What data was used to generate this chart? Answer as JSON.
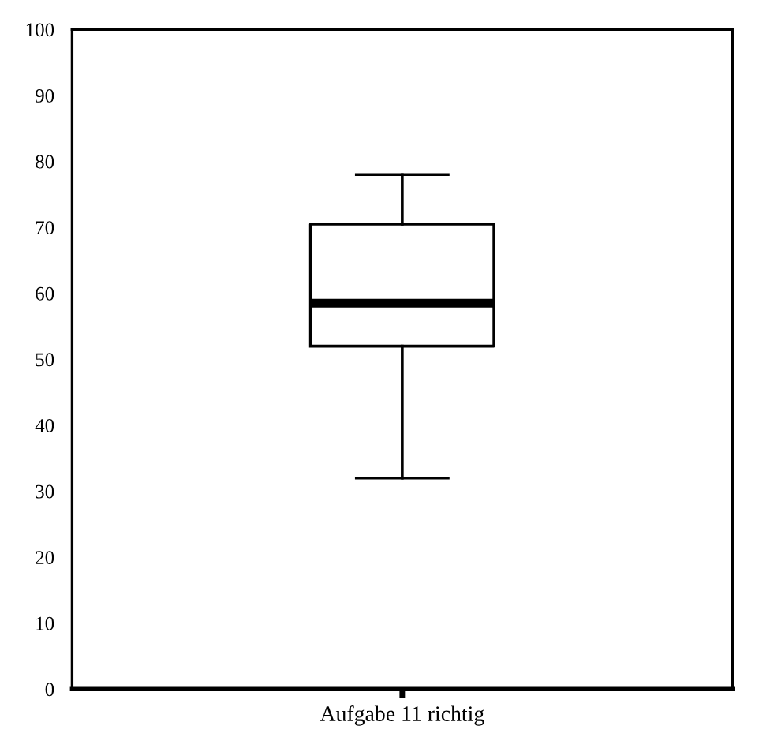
{
  "chart_data": {
    "type": "box",
    "categories": [
      "Aufgabe 11 richtig"
    ],
    "boxes": [
      {
        "low": 32,
        "q1": 52,
        "median": 58.5,
        "q3": 70.5,
        "high": 78
      }
    ],
    "ylim": [
      0,
      100
    ],
    "yticks": [
      0,
      10,
      20,
      30,
      40,
      50,
      60,
      70,
      80,
      90,
      100
    ],
    "grid": false
  }
}
